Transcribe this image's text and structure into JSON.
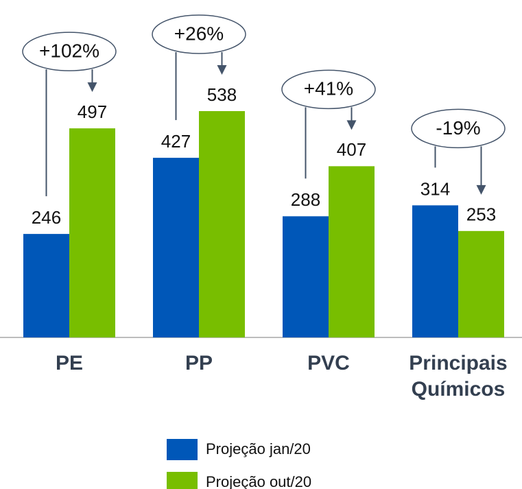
{
  "chart_data": {
    "type": "bar",
    "categories": [
      "PE",
      "PP",
      "PVC",
      "Principais Químicos"
    ],
    "series": [
      {
        "name": "Projeção jan/20",
        "color": "#0057b8",
        "values": [
          246,
          427,
          288,
          314
        ]
      },
      {
        "name": "Projeção out/20",
        "color": "#78be00",
        "values": [
          497,
          538,
          407,
          253
        ]
      }
    ],
    "annotations": [
      "+102%",
      "+26%",
      "+41%",
      "-19%"
    ]
  }
}
